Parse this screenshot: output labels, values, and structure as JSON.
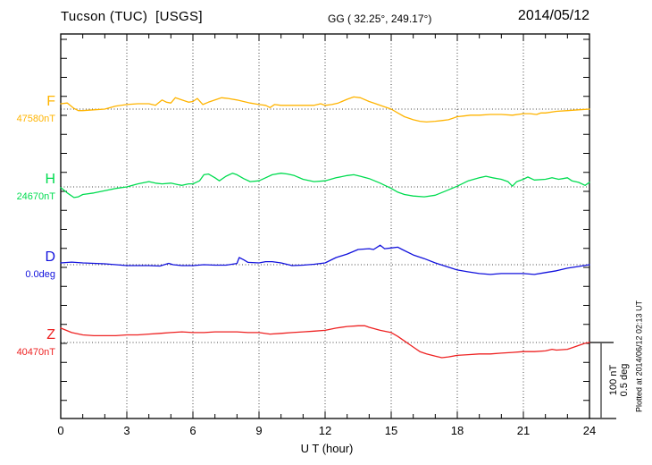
{
  "header": {
    "station_title": "Tucson (TUC)  [USGS]",
    "geographic_coords": "GG ( 32.25°, 249.17°)",
    "date": "2014/05/12"
  },
  "plot_note": "Plotted at 2014/06/12 02:13 UT",
  "scale_bar": {
    "nt_label": "100 nT",
    "deg_label": "0.5 deg"
  },
  "x_axis": {
    "label": "U T (hour)",
    "tick_labels": [
      0,
      3,
      6,
      9,
      12,
      15,
      18,
      21,
      24
    ],
    "minor_tick_hours": 1,
    "major_tick_hours": 3
  },
  "chart_data": {
    "type": "line",
    "title": "Tucson (TUC) [USGS] magnetogram for 2014/05/12",
    "xlabel": "U T (hour)",
    "xlim": [
      0,
      24
    ],
    "grid": "dotted vertical gridlines every 3 h; dotted horizontal baseline per trace",
    "scale": {
      "nT_per_division": 100,
      "deg_per_division": 0.5
    },
    "legend_position": "left margin (trace letter + baseline value)",
    "series": [
      {
        "name": "F",
        "unit": "nT",
        "baseline_value": 47580,
        "baseline_label": "47580nT",
        "color": "#FFB400",
        "points_delta": [
          [
            0,
            7
          ],
          [
            0.3,
            8
          ],
          [
            0.6,
            1
          ],
          [
            0.8,
            -2
          ],
          [
            1,
            -2
          ],
          [
            1.5,
            -1
          ],
          [
            2,
            0
          ],
          [
            2.5,
            4
          ],
          [
            3,
            6
          ],
          [
            3.5,
            7
          ],
          [
            4,
            7
          ],
          [
            4.3,
            5
          ],
          [
            4.6,
            12
          ],
          [
            4.8,
            9
          ],
          [
            5,
            8
          ],
          [
            5.2,
            15
          ],
          [
            5.5,
            12
          ],
          [
            5.8,
            9
          ],
          [
            6,
            10
          ],
          [
            6.2,
            14
          ],
          [
            6.45,
            6
          ],
          [
            6.7,
            9
          ],
          [
            7,
            12
          ],
          [
            7.3,
            15
          ],
          [
            7.6,
            14
          ],
          [
            8,
            12
          ],
          [
            8.3,
            10
          ],
          [
            8.6,
            8
          ],
          [
            9,
            6
          ],
          [
            9.3,
            5
          ],
          [
            9.5,
            2
          ],
          [
            9.7,
            6
          ],
          [
            10,
            5
          ],
          [
            10.5,
            5
          ],
          [
            11,
            5
          ],
          [
            11.5,
            5
          ],
          [
            11.8,
            7
          ],
          [
            12,
            5
          ],
          [
            12.3,
            6
          ],
          [
            12.6,
            8
          ],
          [
            13,
            13
          ],
          [
            13.3,
            16
          ],
          [
            13.6,
            15
          ],
          [
            14,
            10
          ],
          [
            14.3,
            7
          ],
          [
            14.6,
            4
          ],
          [
            15,
            0
          ],
          [
            15.3,
            -5
          ],
          [
            15.6,
            -10
          ],
          [
            16,
            -14
          ],
          [
            16.3,
            -16
          ],
          [
            16.6,
            -17
          ],
          [
            17,
            -16
          ],
          [
            17.3,
            -15
          ],
          [
            17.6,
            -14
          ],
          [
            18,
            -10
          ],
          [
            18.3,
            -9
          ],
          [
            18.6,
            -8
          ],
          [
            19,
            -8
          ],
          [
            19.5,
            -7
          ],
          [
            20,
            -7
          ],
          [
            20.5,
            -8
          ],
          [
            21,
            -6
          ],
          [
            21.3,
            -6
          ],
          [
            21.6,
            -7
          ],
          [
            21.8,
            -5
          ],
          [
            22,
            -5
          ],
          [
            22.5,
            -3
          ],
          [
            23,
            -2
          ],
          [
            23.5,
            -1
          ],
          [
            24,
            0
          ]
        ]
      },
      {
        "name": "H",
        "unit": "nT",
        "baseline_value": 24670,
        "baseline_label": "24670nT",
        "color": "#00DC50",
        "points_delta": [
          [
            0,
            -1
          ],
          [
            0.3,
            -8
          ],
          [
            0.6,
            -14
          ],
          [
            0.8,
            -13
          ],
          [
            1,
            -10
          ],
          [
            1.5,
            -8
          ],
          [
            2,
            -5
          ],
          [
            2.5,
            -2
          ],
          [
            3,
            0
          ],
          [
            3.5,
            4
          ],
          [
            4,
            7
          ],
          [
            4.3,
            5
          ],
          [
            4.6,
            4
          ],
          [
            5,
            5
          ],
          [
            5.3,
            3
          ],
          [
            5.5,
            2
          ],
          [
            5.8,
            4
          ],
          [
            6,
            4
          ],
          [
            6.3,
            8
          ],
          [
            6.5,
            16
          ],
          [
            6.7,
            17
          ],
          [
            7,
            12
          ],
          [
            7.2,
            8
          ],
          [
            7.5,
            14
          ],
          [
            7.8,
            18
          ],
          [
            8,
            16
          ],
          [
            8.3,
            11
          ],
          [
            8.6,
            7
          ],
          [
            9,
            8
          ],
          [
            9.3,
            12
          ],
          [
            9.6,
            16
          ],
          [
            10,
            18
          ],
          [
            10.3,
            17
          ],
          [
            10.6,
            15
          ],
          [
            11,
            10
          ],
          [
            11.5,
            7
          ],
          [
            12,
            8
          ],
          [
            12.5,
            12
          ],
          [
            13,
            15
          ],
          [
            13.3,
            16
          ],
          [
            13.6,
            14
          ],
          [
            14,
            11
          ],
          [
            14.5,
            5
          ],
          [
            15,
            -2
          ],
          [
            15.3,
            -7
          ],
          [
            15.6,
            -10
          ],
          [
            16,
            -12
          ],
          [
            16.5,
            -13
          ],
          [
            17,
            -11
          ],
          [
            17.5,
            -5
          ],
          [
            18,
            1
          ],
          [
            18.5,
            8
          ],
          [
            19,
            12
          ],
          [
            19.3,
            14
          ],
          [
            19.6,
            12
          ],
          [
            20,
            10
          ],
          [
            20.3,
            7
          ],
          [
            20.5,
            1
          ],
          [
            20.7,
            7
          ],
          [
            21,
            10
          ],
          [
            21.2,
            13
          ],
          [
            21.5,
            9
          ],
          [
            22,
            10
          ],
          [
            22.3,
            12
          ],
          [
            22.6,
            10
          ],
          [
            22.8,
            11
          ],
          [
            23,
            12
          ],
          [
            23.2,
            8
          ],
          [
            23.5,
            6
          ],
          [
            23.8,
            2
          ],
          [
            24,
            6
          ]
        ]
      },
      {
        "name": "D",
        "unit": "deg",
        "baseline_value": 0.0,
        "baseline_label": "0.0deg",
        "color": "#1111DD",
        "points_delta": [
          [
            0,
            0.012
          ],
          [
            0.5,
            0.017
          ],
          [
            1,
            0.012
          ],
          [
            1.5,
            0.009
          ],
          [
            2,
            0.006
          ],
          [
            2.5,
            0
          ],
          [
            3,
            -0.006
          ],
          [
            3.5,
            -0.006
          ],
          [
            4,
            -0.006
          ],
          [
            4.5,
            -0.009
          ],
          [
            4.9,
            0.009
          ],
          [
            5.1,
            0
          ],
          [
            5.5,
            -0.006
          ],
          [
            6,
            -0.006
          ],
          [
            6.5,
            0
          ],
          [
            7,
            -0.003
          ],
          [
            7.5,
            -0.003
          ],
          [
            8,
            0.008
          ],
          [
            8.1,
            0.047
          ],
          [
            8.3,
            0.033
          ],
          [
            8.5,
            0.015
          ],
          [
            9,
            0.012
          ],
          [
            9.3,
            0.02
          ],
          [
            9.6,
            0.02
          ],
          [
            10,
            0.012
          ],
          [
            10.5,
            -0.006
          ],
          [
            11,
            -0.003
          ],
          [
            11.5,
            0.003
          ],
          [
            12,
            0.012
          ],
          [
            12.5,
            0.047
          ],
          [
            13,
            0.07
          ],
          [
            13.5,
            0.1
          ],
          [
            14,
            0.105
          ],
          [
            14.2,
            0.1
          ],
          [
            14.5,
            0.128
          ],
          [
            14.7,
            0.105
          ],
          [
            15,
            0.11
          ],
          [
            15.3,
            0.115
          ],
          [
            15.5,
            0.1
          ],
          [
            16,
            0.064
          ],
          [
            16.5,
            0.04
          ],
          [
            17,
            0.012
          ],
          [
            17.5,
            -0.012
          ],
          [
            18,
            -0.035
          ],
          [
            18.5,
            -0.047
          ],
          [
            19,
            -0.058
          ],
          [
            19.5,
            -0.064
          ],
          [
            20,
            -0.058
          ],
          [
            20.5,
            -0.058
          ],
          [
            21,
            -0.058
          ],
          [
            21.5,
            -0.064
          ],
          [
            22,
            -0.052
          ],
          [
            22.5,
            -0.04
          ],
          [
            23,
            -0.023
          ],
          [
            23.5,
            -0.012
          ],
          [
            24,
            0
          ]
        ]
      },
      {
        "name": "Z",
        "unit": "nT",
        "baseline_value": 40470,
        "baseline_label": "40470nT",
        "color": "#EE2222",
        "points_delta": [
          [
            0,
            19
          ],
          [
            0.5,
            13
          ],
          [
            1,
            10
          ],
          [
            1.5,
            9
          ],
          [
            2,
            9
          ],
          [
            2.5,
            9
          ],
          [
            3,
            10
          ],
          [
            3.5,
            10
          ],
          [
            4,
            11
          ],
          [
            4.5,
            12
          ],
          [
            5,
            13
          ],
          [
            5.5,
            14
          ],
          [
            6,
            13
          ],
          [
            6.5,
            13
          ],
          [
            7,
            14
          ],
          [
            7.5,
            14
          ],
          [
            8,
            14
          ],
          [
            8.5,
            13
          ],
          [
            9,
            13
          ],
          [
            9.5,
            11
          ],
          [
            10,
            12
          ],
          [
            10.5,
            13
          ],
          [
            11,
            14
          ],
          [
            11.5,
            15
          ],
          [
            12,
            16
          ],
          [
            12.5,
            19
          ],
          [
            13,
            21
          ],
          [
            13.5,
            22
          ],
          [
            13.8,
            22
          ],
          [
            14,
            20
          ],
          [
            14.5,
            16
          ],
          [
            15,
            13
          ],
          [
            15.3,
            8
          ],
          [
            15.6,
            2
          ],
          [
            16,
            -6
          ],
          [
            16.3,
            -12
          ],
          [
            16.6,
            -15
          ],
          [
            17,
            -18
          ],
          [
            17.3,
            -20
          ],
          [
            17.6,
            -19
          ],
          [
            18,
            -17
          ],
          [
            18.5,
            -16
          ],
          [
            19,
            -15
          ],
          [
            19.5,
            -15
          ],
          [
            20,
            -14
          ],
          [
            20.5,
            -13
          ],
          [
            21,
            -12
          ],
          [
            21.5,
            -12
          ],
          [
            22,
            -11
          ],
          [
            22.3,
            -9
          ],
          [
            22.5,
            -10
          ],
          [
            23,
            -9
          ],
          [
            23.3,
            -6
          ],
          [
            23.5,
            -4
          ],
          [
            23.8,
            -1
          ],
          [
            24,
            0
          ]
        ]
      }
    ]
  }
}
